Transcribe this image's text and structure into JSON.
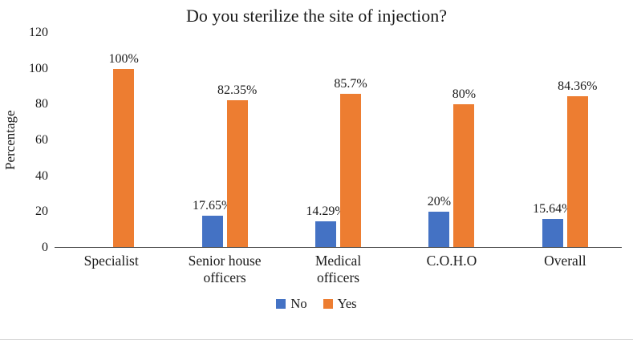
{
  "chart_data": {
    "type": "bar",
    "title": "Do you sterilize the site of injection?",
    "ylabel": "Percentage",
    "xlabel": "",
    "ylim": [
      0,
      120
    ],
    "yticks": [
      0,
      20,
      40,
      60,
      80,
      100,
      120
    ],
    "grid": false,
    "legend_position": "bottom",
    "categories": [
      "Specialist",
      "Senior house officers",
      "Medical officers",
      "C.O.H.O",
      "Overall"
    ],
    "series": [
      {
        "name": "No",
        "color": "#4472C4",
        "values": [
          0,
          17.65,
          14.29,
          20,
          15.64
        ],
        "labels": [
          "",
          "17.65%",
          "14.29%",
          "20%",
          "15.64%"
        ]
      },
      {
        "name": "Yes",
        "color": "#ED7D31",
        "values": [
          100,
          82.35,
          85.7,
          80,
          84.36
        ],
        "labels": [
          "100%",
          "82.35%",
          "85.7%",
          "80%",
          "84.36%"
        ]
      }
    ]
  }
}
